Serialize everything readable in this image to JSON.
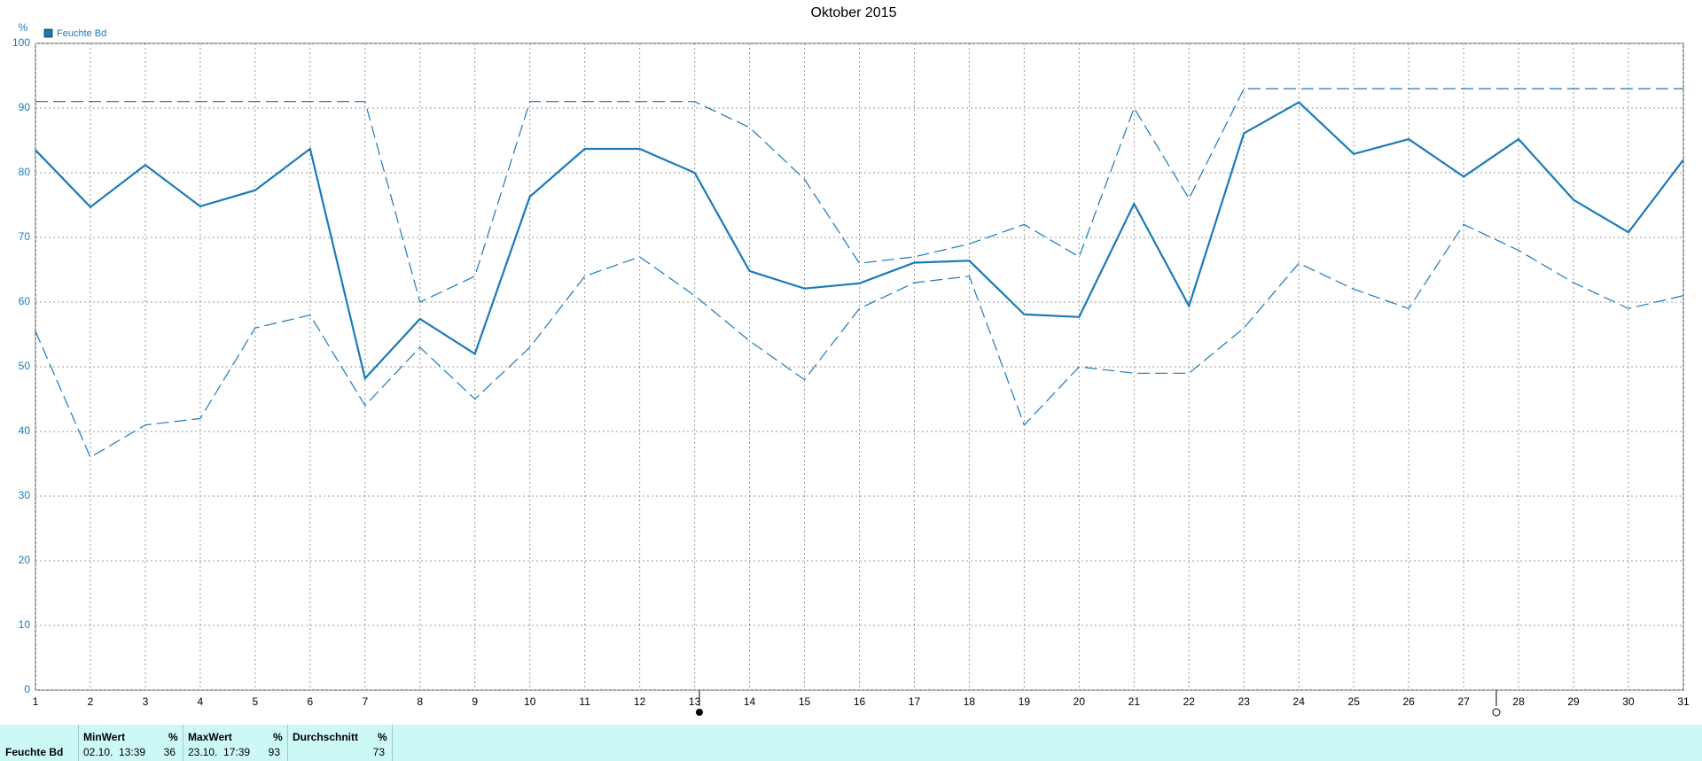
{
  "chart_data": {
    "type": "line",
    "title": "Oktober 2015",
    "y_label": "%",
    "x": [
      1,
      2,
      3,
      4,
      5,
      6,
      7,
      8,
      9,
      10,
      11,
      12,
      13,
      14,
      15,
      16,
      17,
      18,
      19,
      20,
      21,
      22,
      23,
      24,
      25,
      26,
      27,
      28,
      29,
      30,
      31
    ],
    "xlim": [
      1,
      31
    ],
    "xticks": [
      1,
      2,
      3,
      4,
      5,
      6,
      7,
      8,
      9,
      10,
      11,
      12,
      13,
      14,
      15,
      16,
      17,
      18,
      19,
      20,
      21,
      22,
      23,
      24,
      25,
      26,
      27,
      28,
      29,
      30,
      31
    ],
    "ylim": [
      0,
      100
    ],
    "yticks": [
      0,
      10,
      20,
      30,
      40,
      50,
      60,
      70,
      80,
      90,
      100
    ],
    "grid": true,
    "legend": "top-left",
    "series": [
      {
        "name": "Feuchte Bd",
        "color": "#1a7ab8",
        "style": "solid",
        "values": [
          83.5,
          74.7,
          81.2,
          74.8,
          77.3,
          83.7,
          48.2,
          57.4,
          52,
          76.3,
          83.7,
          83.7,
          80,
          64.8,
          62.1,
          62.9,
          66.1,
          66.4,
          58.1,
          57.7,
          75.2,
          59.4,
          86.1,
          90.9,
          82.9,
          85.2,
          79.4,
          85.2,
          75.8,
          70.8,
          82
        ]
      },
      {
        "color": "#1a7ab8",
        "style": "dashed",
        "values": [
          91,
          91,
          91,
          91,
          91,
          91,
          91,
          60,
          64,
          91,
          91,
          91,
          91,
          87,
          79,
          66,
          67,
          69,
          72,
          67,
          90,
          76,
          93,
          93,
          93,
          93,
          93,
          93,
          93,
          93,
          93
        ]
      },
      {
        "color": "#1a7ab8",
        "style": "dashed",
        "values": [
          55.5,
          36,
          41,
          42,
          56,
          58,
          44,
          53,
          45,
          53,
          64,
          67,
          61,
          54,
          48,
          59,
          63,
          64,
          41,
          50,
          49,
          49,
          56,
          66,
          62,
          59,
          72,
          68,
          63,
          59,
          61
        ]
      }
    ]
  },
  "table": {
    "row_label": "Feuchte Bd",
    "columns": [
      {
        "header": "MinWert",
        "unit": "%",
        "time": "02.10.  13:39",
        "value": "36"
      },
      {
        "header": "MaxWert",
        "unit": "%",
        "time": "23.10.  17:39",
        "value": "93"
      },
      {
        "header": "Durchschnitt",
        "unit": "%",
        "time": "",
        "value": "73"
      }
    ]
  }
}
